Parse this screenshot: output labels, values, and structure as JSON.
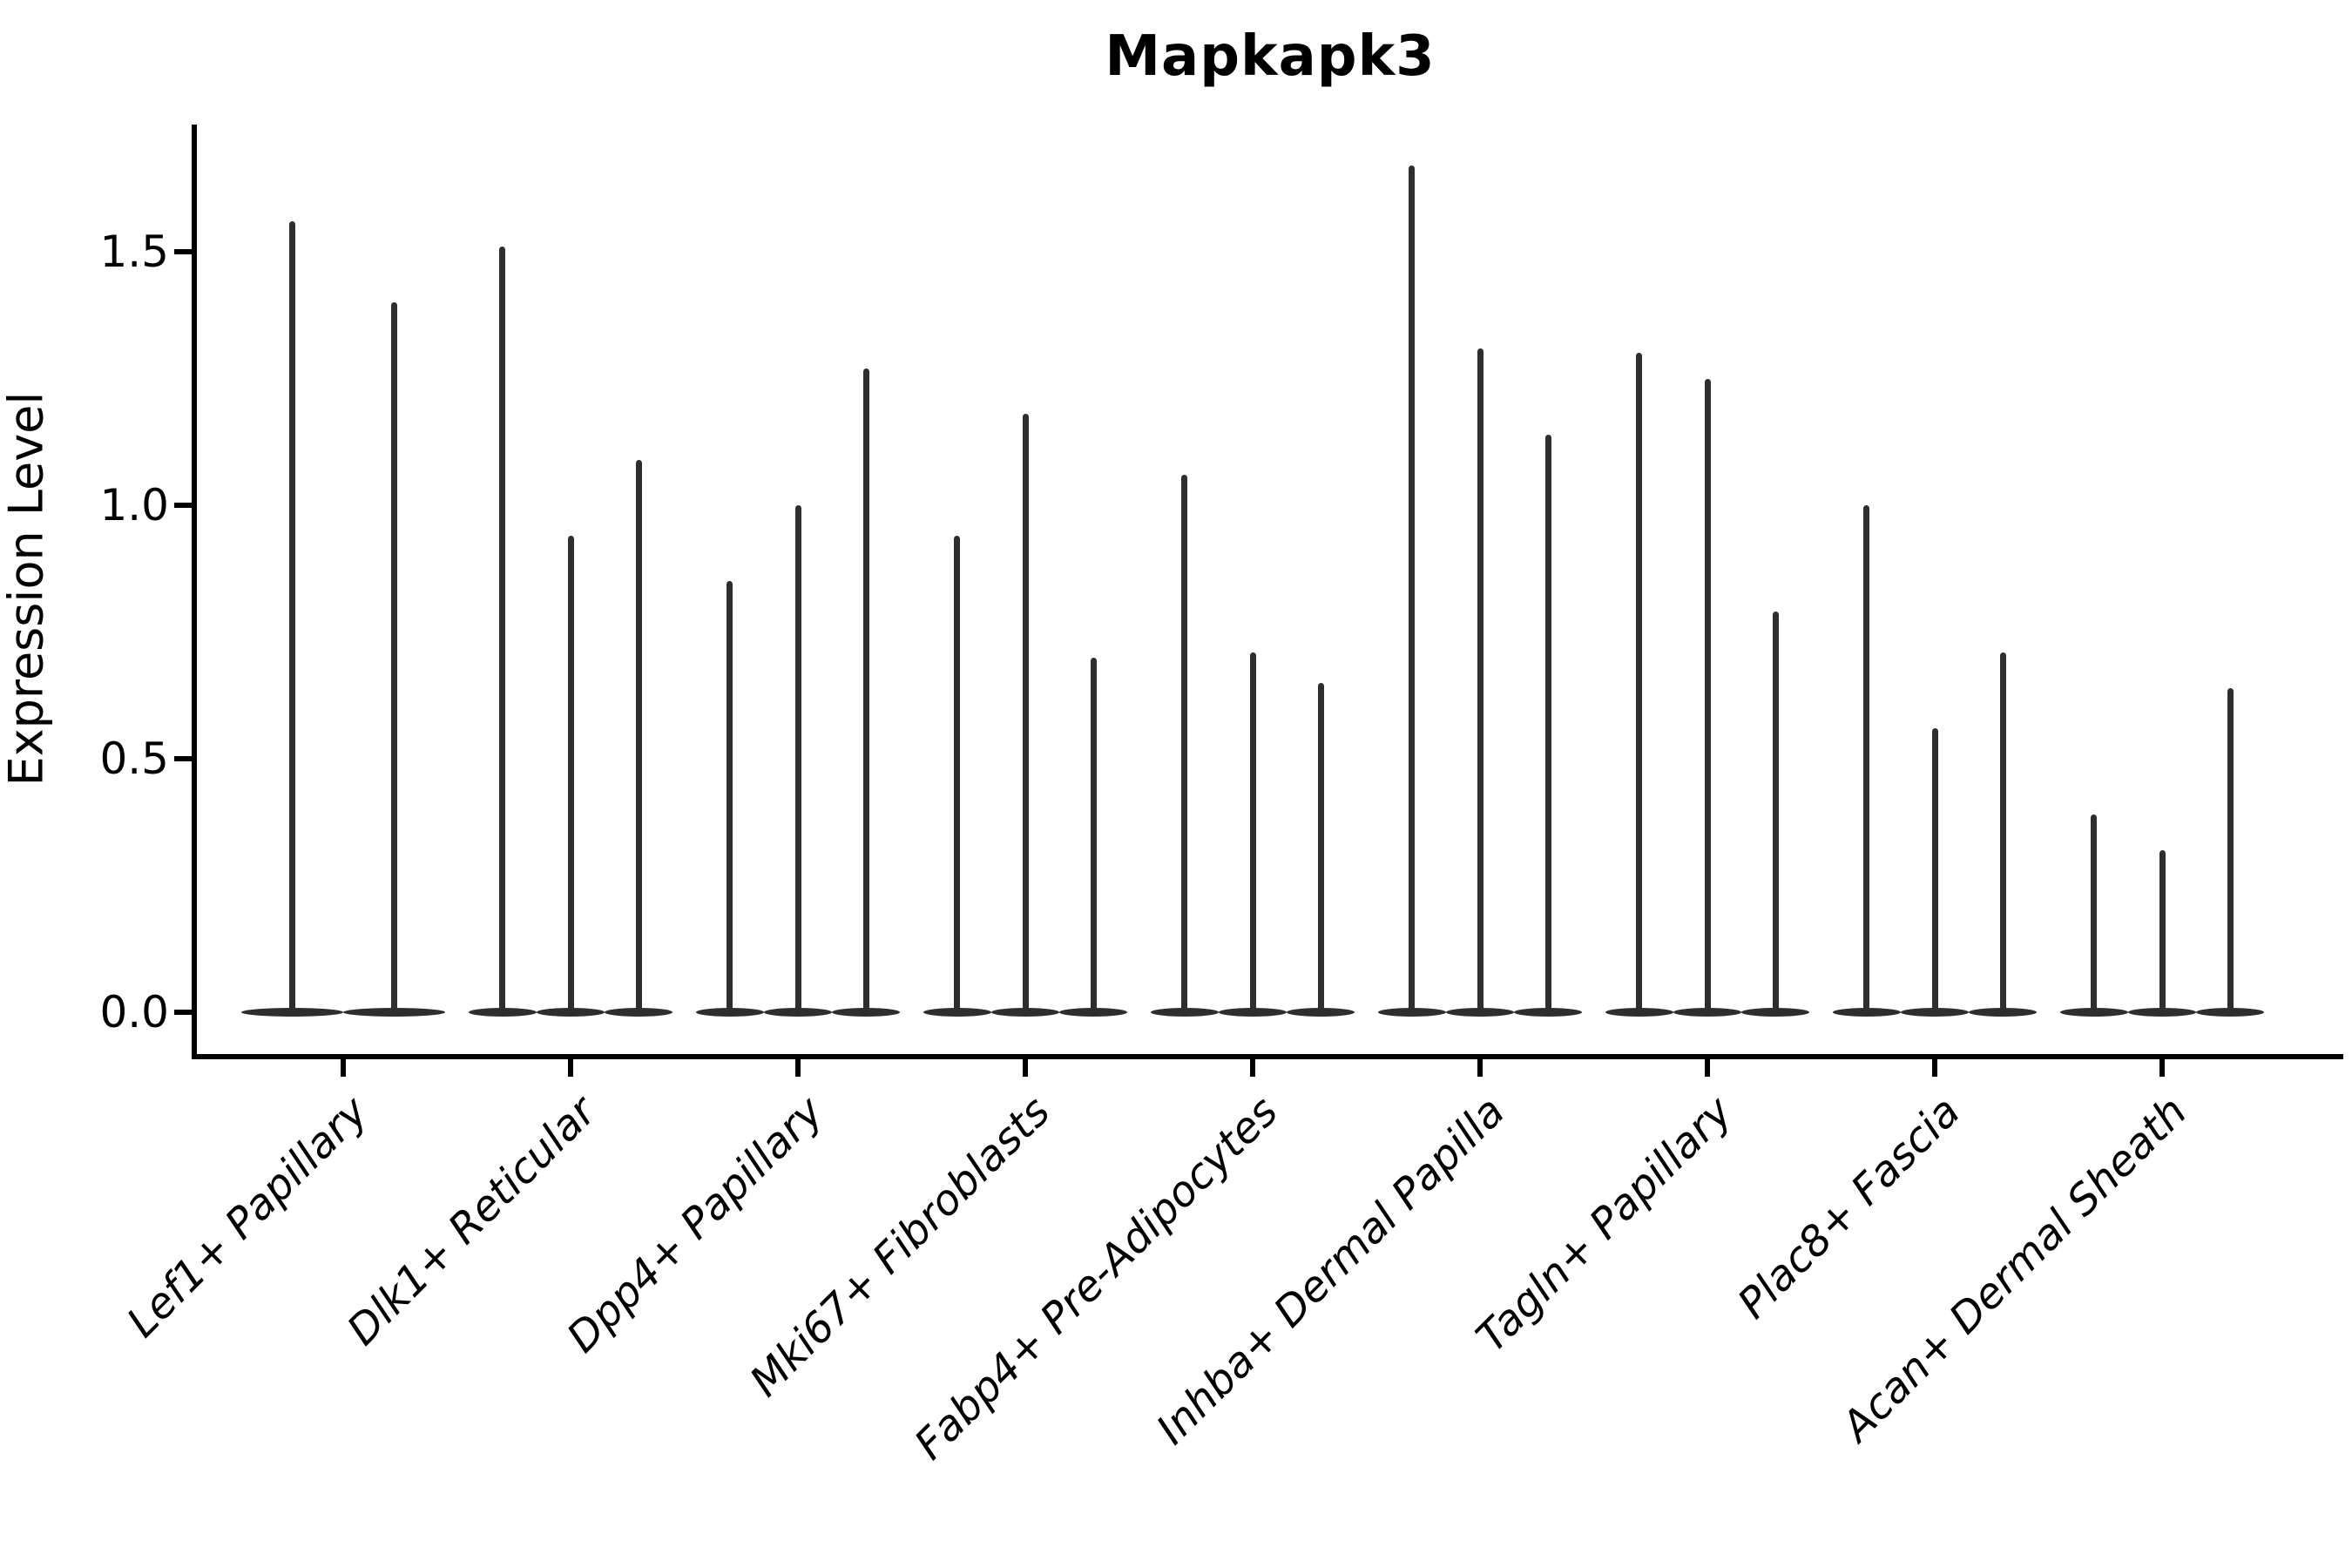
{
  "title": "Mapkapk3",
  "axes": {
    "ylabel": "Expression Level",
    "ytick_labels": [
      "0.0",
      "0.5",
      "1.0",
      "1.5"
    ],
    "ytick_values": [
      0.0,
      0.5,
      1.0,
      1.5
    ]
  },
  "colors": {
    "violin": "#2e2e2e",
    "axis": "#000000",
    "background": "#ffffff"
  },
  "chart_data": {
    "type": "violin",
    "title": "Mapkapk3",
    "xlabel": "",
    "ylabel": "Expression Level",
    "ylim": [
      -0.08,
      1.75
    ],
    "grid": false,
    "legend": "none",
    "x_label_rotation_deg": 45,
    "group_width_units": 0.9,
    "values_represent": "per-violin maximum expression level (top of thin spike); distribution mass concentrated at 0 (flat base)",
    "categories": [
      "Lef1+ Papillary",
      "Dlk1+ Reticular",
      "Dpp4+ Papillary",
      "Mki67+ Fibroblasts",
      "Fabp4+ Pre-Adipocytes",
      "Inhba+ Dermal Papilla",
      "Tagln+ Papillary",
      "Plac8+ Fascia",
      "Acan+ Dermal Sheath"
    ],
    "groups": [
      {
        "category": "Lef1+ Papillary",
        "violin_maxima": [
          1.56,
          1.4
        ]
      },
      {
        "category": "Dlk1+ Reticular",
        "violin_maxima": [
          1.51,
          0.94,
          1.09
        ]
      },
      {
        "category": "Dpp4+ Papillary",
        "violin_maxima": [
          0.85,
          1.0,
          1.27
        ]
      },
      {
        "category": "Mki67+ Fibroblasts",
        "violin_maxima": [
          0.94,
          1.18,
          0.7
        ]
      },
      {
        "category": "Fabp4+ Pre-Adipocytes",
        "violin_maxima": [
          1.06,
          0.71,
          0.65
        ]
      },
      {
        "category": "Inhba+ Dermal Papilla",
        "violin_maxima": [
          1.67,
          1.31,
          1.14
        ]
      },
      {
        "category": "Tagln+ Papillary",
        "violin_maxima": [
          1.3,
          1.25,
          0.79
        ]
      },
      {
        "category": "Plac8+ Fascia",
        "violin_maxima": [
          1.0,
          0.56,
          0.71
        ]
      },
      {
        "category": "Acan+ Dermal Sheath",
        "violin_maxima": [
          0.39,
          0.32,
          0.64
        ]
      }
    ]
  }
}
